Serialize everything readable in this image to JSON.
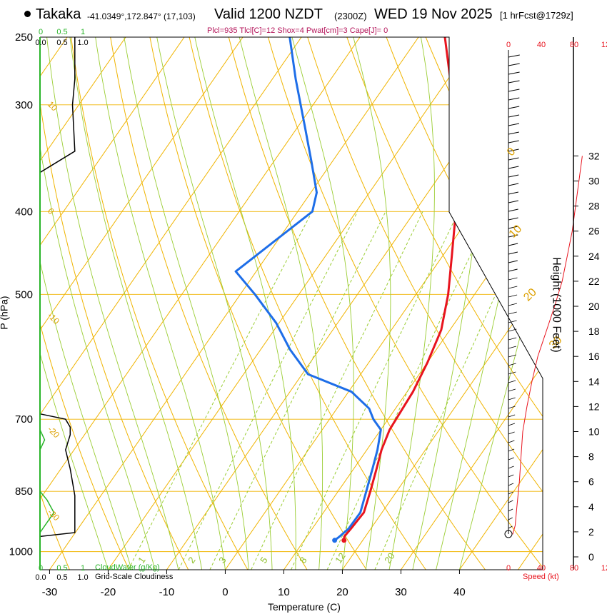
{
  "header": {
    "station": "Takaka",
    "coords": "-41.0349°,172.847° (17,103)",
    "valid": "Valid 1200 NZDT",
    "utc": "(2300Z)",
    "date": "WED 19 Nov 2025",
    "forecast": "[1 hrFcst@1729z]",
    "params": "Plcl=935 Tlcl[C]=12 Shox=4 Pwat[cm]=3 Cape[J]= 0"
  },
  "colors": {
    "temperature": "#e8141e",
    "dewpoint": "#1e6ee8",
    "isotherm": "#f0b400",
    "dry_adiabat": "#f0b400",
    "moist_adiabat": "#9acd32",
    "mixing_ratio": "#9acd32",
    "cloud_water": "#28b428",
    "wind_speed": "#e8141e"
  },
  "chart_data": {
    "type": "line",
    "xlabel": "Temperature (C)",
    "ylabel": "P (hPa)",
    "y2label": "Height (1000 Feet)",
    "x_ticks": [
      "-30",
      "-20",
      "-10",
      "0",
      "10",
      "20",
      "30",
      "40"
    ],
    "p_ticks": [
      "250",
      "300",
      "400",
      "500",
      "700",
      "850",
      "1000"
    ],
    "height_ticks": [
      "0",
      "2",
      "4",
      "6",
      "8",
      "10",
      "12",
      "14",
      "16",
      "18",
      "20",
      "22",
      "24",
      "26",
      "28",
      "30",
      "32"
    ],
    "isotherm_labels": [
      "-30",
      "-20",
      "-10",
      "0",
      "10",
      "20",
      "30"
    ],
    "mixing_ratio_labels": [
      "1",
      "2",
      "3",
      "5",
      "8",
      "12",
      "20"
    ],
    "cloud_scale_labels": [
      "0.0",
      "0.5",
      "1.0"
    ],
    "cloud_water_legend": "CloudWater (g/Kg)",
    "cloudiness_legend": "Grid-Scale Cloudiness",
    "speed_labels": [
      "0",
      "40",
      "80",
      "12"
    ],
    "speed_legend": "Speed (kt)",
    "temperature_profile": [
      {
        "p": 970,
        "t": 16.8
      },
      {
        "p": 960,
        "t": 16.4
      },
      {
        "p": 940,
        "t": 16.6
      },
      {
        "p": 900,
        "t": 16.9
      },
      {
        "p": 850,
        "t": 15.5
      },
      {
        "p": 800,
        "t": 13.9
      },
      {
        "p": 760,
        "t": 12.5
      },
      {
        "p": 720,
        "t": 11.5
      },
      {
        "p": 690,
        "t": 11.3
      },
      {
        "p": 650,
        "t": 11.0
      },
      {
        "p": 600,
        "t": 10.0
      },
      {
        "p": 550,
        "t": 8.5
      },
      {
        "p": 500,
        "t": 5.5
      },
      {
        "p": 450,
        "t": 1.5
      },
      {
        "p": 400,
        "t": -3.0
      },
      {
        "p": 370,
        "t": -5.5
      },
      {
        "p": 340,
        "t": -9.5
      },
      {
        "p": 300,
        "t": -16.0
      },
      {
        "p": 270,
        "t": -21.5
      },
      {
        "p": 250,
        "t": -25.5
      }
    ],
    "dewpoint_profile": [
      {
        "p": 970,
        "t": 15.2
      },
      {
        "p": 960,
        "t": 15.6
      },
      {
        "p": 940,
        "t": 16.2
      },
      {
        "p": 900,
        "t": 16.3
      },
      {
        "p": 850,
        "t": 14.8
      },
      {
        "p": 800,
        "t": 13.2
      },
      {
        "p": 760,
        "t": 11.8
      },
      {
        "p": 720,
        "t": 10.0
      },
      {
        "p": 700,
        "t": 7.5
      },
      {
        "p": 680,
        "t": 5.5
      },
      {
        "p": 650,
        "t": 0.5
      },
      {
        "p": 620,
        "t": -9.0
      },
      {
        "p": 580,
        "t": -15.0
      },
      {
        "p": 540,
        "t": -20.5
      },
      {
        "p": 500,
        "t": -27.5
      },
      {
        "p": 470,
        "t": -33.5
      },
      {
        "p": 400,
        "t": -27.5
      },
      {
        "p": 380,
        "t": -29.0
      },
      {
        "p": 350,
        "t": -33.5
      },
      {
        "p": 320,
        "t": -38.5
      },
      {
        "p": 280,
        "t": -46.0
      },
      {
        "p": 250,
        "t": -52.0
      }
    ],
    "surface_temperature": {
      "p": 970,
      "t": 16.8
    },
    "surface_dewpoint": {
      "p": 970,
      "t": 15.2
    },
    "wind_speed_profile": [
      {
        "h": 1.8,
        "kt": 5
      },
      {
        "h": 2.5,
        "kt": 8
      },
      {
        "h": 4,
        "kt": 10
      },
      {
        "h": 6,
        "kt": 13
      },
      {
        "h": 8,
        "kt": 15
      },
      {
        "h": 10,
        "kt": 17
      },
      {
        "h": 12,
        "kt": 22
      },
      {
        "h": 14,
        "kt": 28
      },
      {
        "h": 16,
        "kt": 35
      },
      {
        "h": 18,
        "kt": 45
      },
      {
        "h": 20,
        "kt": 55
      },
      {
        "h": 22,
        "kt": 64
      },
      {
        "h": 24,
        "kt": 70
      },
      {
        "h": 26,
        "kt": 76
      },
      {
        "h": 28,
        "kt": 80
      },
      {
        "h": 30,
        "kt": 84
      },
      {
        "h": 32,
        "kt": 88
      }
    ],
    "cloudiness_profile": [
      {
        "p": 1000,
        "c": 0.0
      },
      {
        "p": 960,
        "c": 0.0
      },
      {
        "p": 950,
        "c": 0.75
      },
      {
        "p": 880,
        "c": 0.75
      },
      {
        "p": 860,
        "c": 0.75
      },
      {
        "p": 800,
        "c": 0.65
      },
      {
        "p": 760,
        "c": 0.55
      },
      {
        "p": 730,
        "c": 0.65
      },
      {
        "p": 715,
        "c": 0.65
      },
      {
        "p": 700,
        "c": 0.55
      },
      {
        "p": 690,
        "c": 0.0
      },
      {
        "p": 360,
        "c": 0.0
      },
      {
        "p": 340,
        "c": 0.75
      },
      {
        "p": 300,
        "c": 0.7
      },
      {
        "p": 280,
        "c": 0.75
      },
      {
        "p": 250,
        "c": 0.75
      }
    ],
    "cloud_water_profile": [
      {
        "p": 1000,
        "q": 0.0
      },
      {
        "p": 950,
        "q": 0.0
      },
      {
        "p": 900,
        "q": 0.3
      },
      {
        "p": 870,
        "q": 0.15
      },
      {
        "p": 850,
        "q": 0.0
      },
      {
        "p": 760,
        "q": 0.0
      },
      {
        "p": 740,
        "q": 0.1
      },
      {
        "p": 720,
        "q": 0.0
      },
      {
        "p": 700,
        "q": 0.0
      },
      {
        "p": 250,
        "q": 0.0
      }
    ]
  }
}
